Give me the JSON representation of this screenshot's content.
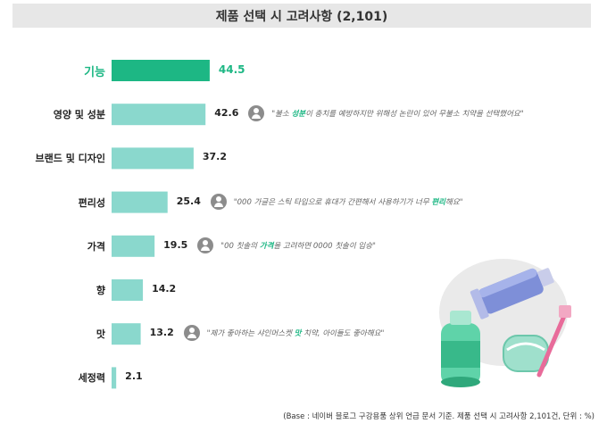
{
  "chart_data": {
    "type": "bar",
    "orientation": "horizontal",
    "title": "제품 선택 시 고려사항 (2,101)",
    "categories": [
      "기능",
      "영양 및 성분",
      "브랜드 및 디자인",
      "편리성",
      "가격",
      "향",
      "맛",
      "세정력"
    ],
    "values": [
      44.5,
      42.6,
      37.2,
      25.4,
      19.5,
      14.2,
      13.2,
      2.1
    ],
    "value_labels": [
      "44.5",
      "42.6",
      "37.2",
      "25.4",
      "19.5",
      "14.2",
      "13.2",
      "2.1"
    ],
    "highlight_index": 0,
    "colors": {
      "highlight": "#1db784",
      "bar": "#8ad8cd",
      "label_highlight": "#1db784"
    },
    "grid": false,
    "footnote": "(Base : 네이버 블로그 구강용품 상위 언급 문서 기준. 제품 선택 시 고려사항 2,101건, 단위 : %)"
  },
  "comments": [
    {
      "row": 1,
      "before": "\"불소 ",
      "keyword": "성분",
      "after": "이 충치를 예방하지만 위해성 논란이 있어 무불소 치약을 선택했어요\""
    },
    {
      "row": 3,
      "before": "\"000 가글은 스틱 타입으로 휴대가 간편해서 사용하기가 너무 ",
      "keyword": "편리",
      "after": "해요\""
    },
    {
      "row": 4,
      "before": "\"00 칫솔의 ",
      "keyword": "가격",
      "after": "을 고려하면 0000 칫솔이 입승\""
    },
    {
      "row": 6,
      "before": "\"제가 좋아하는 샤인머스켓 ",
      "keyword": "맛",
      "after": " 치약, 아이들도 좋아해요\""
    }
  ],
  "icons": {
    "comment_avatar": "user-avatar-icon",
    "illustration": "oral-care-products-illustration"
  }
}
